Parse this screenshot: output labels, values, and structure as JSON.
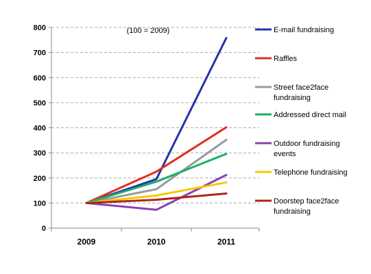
{
  "chart_data": {
    "type": "line",
    "annotation": "(100 = 2009)",
    "categories": [
      "2009",
      "2010",
      "2011"
    ],
    "ylim": [
      0,
      800
    ],
    "yticks": [
      0,
      100,
      200,
      300,
      400,
      500,
      600,
      700,
      800
    ],
    "grid": true,
    "legend_position": "right",
    "series": [
      {
        "name": [
          "E-mail fundraising"
        ],
        "color": "#2233aa",
        "values": [
          100,
          195,
          758
        ]
      },
      {
        "name": [
          "Raffles"
        ],
        "color": "#e0301e",
        "values": [
          100,
          225,
          402
        ]
      },
      {
        "name": [
          "Street face2face",
          "fundraising"
        ],
        "color": "#999999",
        "values": [
          100,
          155,
          352
        ]
      },
      {
        "name": [
          "Addressed direct mail"
        ],
        "color": "#1aae6a",
        "values": [
          100,
          185,
          296
        ]
      },
      {
        "name": [
          "Outdoor fundraising",
          "events"
        ],
        "color": "#8a3fb5",
        "values": [
          100,
          73,
          212
        ]
      },
      {
        "name": [
          "Telephone fundraising"
        ],
        "color": "#f7c800",
        "values": [
          100,
          130,
          182
        ]
      },
      {
        "name": [
          "Doorstep face2face",
          "fundraising"
        ],
        "color": "#b02418",
        "values": [
          100,
          113,
          138
        ]
      }
    ]
  }
}
